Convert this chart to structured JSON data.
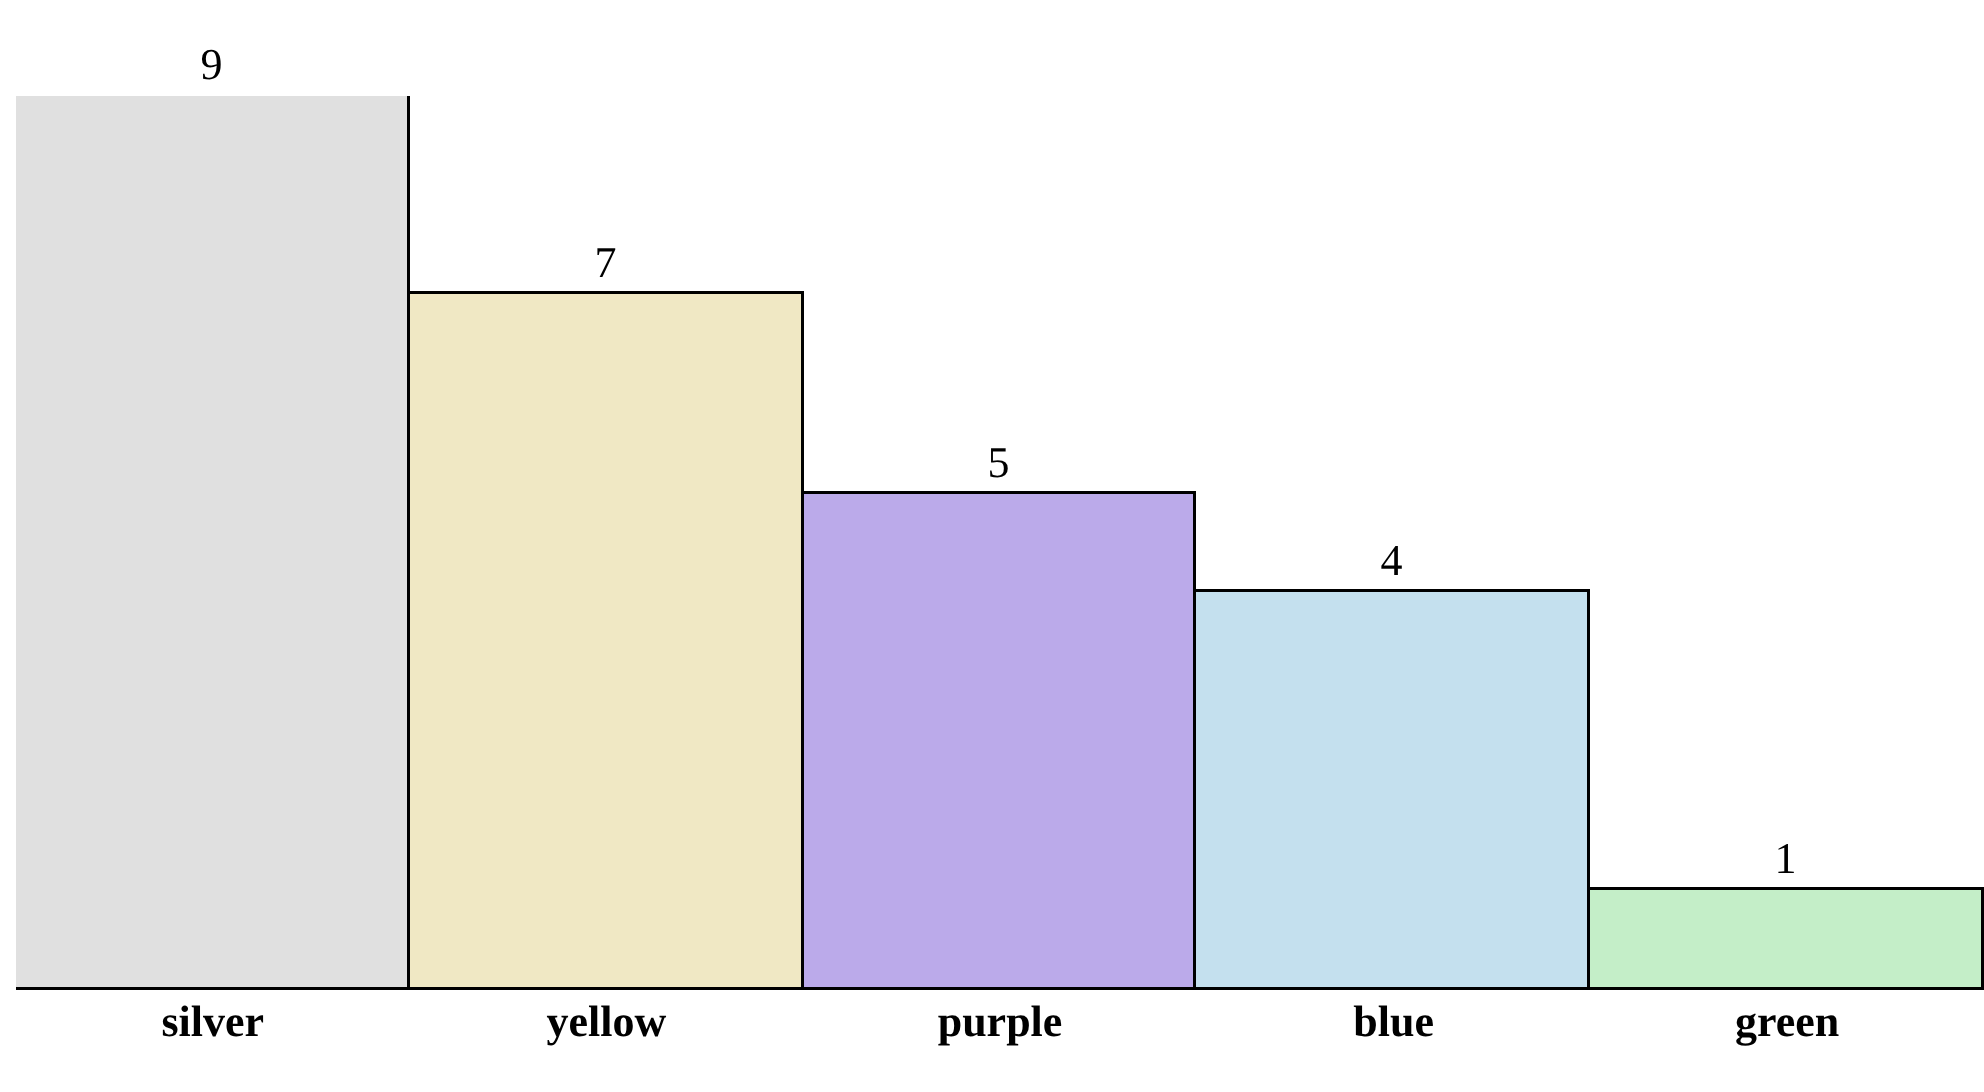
{
  "chart_data": {
    "type": "bar",
    "categories": [
      "silver",
      "yellow",
      "purple",
      "blue",
      "green"
    ],
    "values": [
      9,
      7,
      5,
      4,
      1
    ],
    "colors": [
      "#e0e0e0",
      "#f0e8c4",
      "#bbaaea",
      "#c4e0ee",
      "#c4eec8"
    ],
    "data_labels": true
  }
}
